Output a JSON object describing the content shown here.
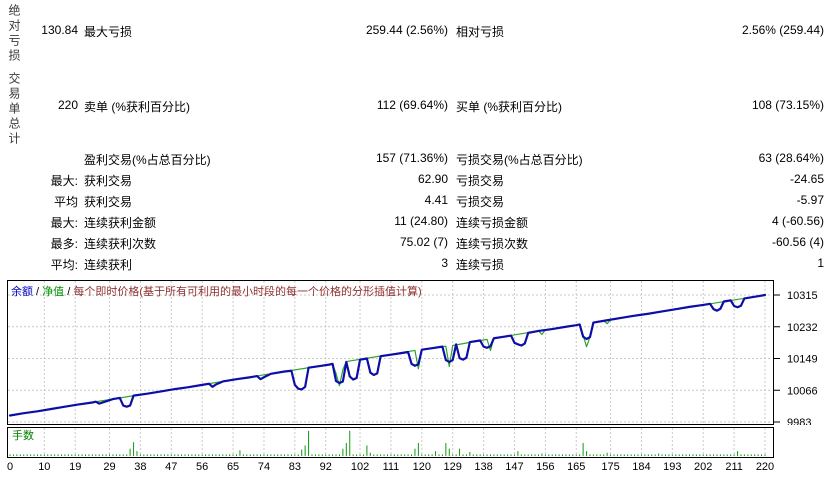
{
  "stats": {
    "captions": {
      "c1": "绝对亏损",
      "c2": "交易单总计"
    },
    "rows": [
      {
        "v1": "130.84",
        "l1": "最大亏损",
        "v2": "259.44 (2.56%)",
        "l2": "相对亏损",
        "v3": "2.56% (259.44)"
      },
      {
        "v1": "220",
        "l1": "卖单 (%获利百分比)",
        "v2": "112 (69.64%)",
        "l2": "买单 (%获利百分比)",
        "v3": "108 (73.15%)"
      },
      {
        "v1": "",
        "l1": "盈利交易(%占总百分比)",
        "v2": "157 (71.36%)",
        "l2": "亏损交易(%占总百分比)",
        "v3": "63 (28.64%)"
      },
      {
        "v1": "最大:",
        "l1": "获利交易",
        "v2": "62.90",
        "l2": "亏损交易",
        "v3": "-24.65"
      },
      {
        "v1": "平均",
        "l1": "获利交易",
        "v2": "4.41",
        "l2": "亏损交易",
        "v3": "-5.97"
      },
      {
        "v1": "最大:",
        "l1": "连续获利金额",
        "v2": "11 (24.80)",
        "l2": "连续亏损金额",
        "v3": "4 (-60.56)"
      },
      {
        "v1": "最多:",
        "l1": "连续获利次数",
        "v2": "75.02 (7)",
        "l2": "连续亏损次数",
        "v3": "-60.56 (4)"
      },
      {
        "v1": "平均:",
        "l1": "连续获利",
        "v2": "3",
        "l2": "连续亏损",
        "v3": "1"
      }
    ]
  },
  "legend": {
    "balance": "余额",
    "equity": "净值",
    "sep": " / ",
    "price": "每个即时价格(基于所有可利用的最小时段的每一个价格的分形插值计算)"
  },
  "lots_label": "手数",
  "colors": {
    "balance": "#0d0da8",
    "equity": "#2fa12f",
    "lots": "#0f9a0f",
    "price_caption": "#903030",
    "grid": "#c9c9c9",
    "border": "#000000",
    "legend_balance": "#0000c0",
    "legend_equity": "#009000"
  },
  "chart_data": [
    {
      "type": "line",
      "title": "余额 / 净值 / 每个即时价格(基于所有可利用的最小时段的每一个价格的分形插值计算)",
      "legend_position": "top-left-inside",
      "grid": true,
      "y_axis_side": "right",
      "xlim": [
        0,
        220
      ],
      "ylim": [
        9983,
        10319
      ],
      "yticks": [
        10315,
        10232,
        10149,
        10066,
        9983
      ],
      "xticks": [
        0,
        10,
        19,
        29,
        38,
        47,
        56,
        65,
        74,
        83,
        92,
        102,
        111,
        120,
        129,
        138,
        147,
        156,
        165,
        175,
        184,
        193,
        202,
        211,
        220
      ],
      "series": [
        {
          "name": "净值",
          "points": [
            [
              0,
              10000
            ],
            [
              94,
              10135
            ],
            [
              95,
              10110
            ],
            [
              96,
              10078
            ],
            [
              97,
              10120
            ],
            [
              98,
              10141
            ],
            [
              118,
              10170
            ],
            [
              119,
              10122
            ],
            [
              120,
              10172
            ],
            [
              127,
              10181
            ],
            [
              128,
              10128
            ],
            [
              129,
              10183
            ],
            [
              139,
              10199
            ],
            [
              140,
              10170
            ],
            [
              141,
              10202
            ],
            [
              154,
              10221
            ],
            [
              155,
              10212
            ],
            [
              156,
              10224
            ],
            [
              166,
              10238
            ],
            [
              167,
              10210
            ],
            [
              168,
              10180
            ],
            [
              169,
              10205
            ],
            [
              170,
              10243
            ],
            [
              173,
              10248
            ],
            [
              174,
              10240
            ],
            [
              175,
              10250
            ],
            [
              220,
              10315
            ]
          ]
        },
        {
          "name": "余额",
          "points": [
            [
              0,
              10000
            ],
            [
              4,
              10006
            ],
            [
              8,
              10011
            ],
            [
              12,
              10017
            ],
            [
              16,
              10023
            ],
            [
              20,
              10029
            ],
            [
              24,
              10034
            ],
            [
              25,
              10036
            ],
            [
              26,
              10031
            ],
            [
              27,
              10034
            ],
            [
              30,
              10043
            ],
            [
              32,
              10046
            ],
            [
              33,
              10026
            ],
            [
              34,
              10023
            ],
            [
              35,
              10026
            ],
            [
              36,
              10052
            ],
            [
              40,
              10057
            ],
            [
              44,
              10063
            ],
            [
              48,
              10069
            ],
            [
              52,
              10074
            ],
            [
              56,
              10080
            ],
            [
              58,
              10083
            ],
            [
              59,
              10075
            ],
            [
              60,
              10081
            ],
            [
              62,
              10089
            ],
            [
              66,
              10095
            ],
            [
              70,
              10100
            ],
            [
              72,
              10103
            ],
            [
              73,
              10095
            ],
            [
              74,
              10100
            ],
            [
              76,
              10109
            ],
            [
              80,
              10115
            ],
            [
              82,
              10117
            ],
            [
              83,
              10080
            ],
            [
              84,
              10070
            ],
            [
              85,
              10068
            ],
            [
              86,
              10075
            ],
            [
              87,
              10125
            ],
            [
              90,
              10129
            ],
            [
              93,
              10133
            ],
            [
              94,
              10135
            ],
            [
              95,
              10090
            ],
            [
              96,
              10085
            ],
            [
              97,
              10089
            ],
            [
              98,
              10140
            ],
            [
              99,
              10102
            ],
            [
              100,
              10094
            ],
            [
              101,
              10098
            ],
            [
              102,
              10146
            ],
            [
              104,
              10149
            ],
            [
              105,
              10112
            ],
            [
              106,
              10106
            ],
            [
              107,
              10110
            ],
            [
              108,
              10155
            ],
            [
              111,
              10159
            ],
            [
              114,
              10163
            ],
            [
              116,
              10166
            ],
            [
              117,
              10135
            ],
            [
              118,
              10130
            ],
            [
              119,
              10134
            ],
            [
              120,
              10172
            ],
            [
              123,
              10176
            ],
            [
              126,
              10180
            ],
            [
              127,
              10145
            ],
            [
              128,
              10140
            ],
            [
              129,
              10145
            ],
            [
              130,
              10186
            ],
            [
              131,
              10150
            ],
            [
              132,
              10146
            ],
            [
              133,
              10151
            ],
            [
              134,
              10192
            ],
            [
              137,
              10196
            ],
            [
              138,
              10180
            ],
            [
              139,
              10177
            ],
            [
              140,
              10181
            ],
            [
              141,
              10202
            ],
            [
              144,
              10206
            ],
            [
              146,
              10209
            ],
            [
              147,
              10190
            ],
            [
              148,
              10186
            ],
            [
              149,
              10183
            ],
            [
              150,
              10188
            ],
            [
              151,
              10216
            ],
            [
              154,
              10221
            ],
            [
              158,
              10226
            ],
            [
              162,
              10232
            ],
            [
              165,
              10236
            ],
            [
              166,
              10238
            ],
            [
              167,
              10206
            ],
            [
              168,
              10200
            ],
            [
              169,
              10205
            ],
            [
              170,
              10243
            ],
            [
              174,
              10249
            ],
            [
              178,
              10255
            ],
            [
              182,
              10261
            ],
            [
              186,
              10266
            ],
            [
              190,
              10272
            ],
            [
              194,
              10278
            ],
            [
              198,
              10284
            ],
            [
              202,
              10289
            ],
            [
              204,
              10292
            ],
            [
              205,
              10278
            ],
            [
              206,
              10274
            ],
            [
              207,
              10279
            ],
            [
              208,
              10298
            ],
            [
              210,
              10301
            ],
            [
              211,
              10286
            ],
            [
              212,
              10283
            ],
            [
              213,
              10287
            ],
            [
              214,
              10306
            ],
            [
              216,
              10309
            ],
            [
              218,
              10312
            ],
            [
              220,
              10315
            ]
          ]
        }
      ]
    },
    {
      "type": "bar",
      "title": "手数",
      "xlim": [
        0,
        220
      ],
      "default_value": 0.1,
      "max_value": 1.6,
      "values_note": "lot size per trade; all trades 0.1 except spikes",
      "spikes": [
        [
          35,
          0.45
        ],
        [
          36,
          0.85
        ],
        [
          37,
          0.3
        ],
        [
          67,
          0.35
        ],
        [
          85,
          0.4
        ],
        [
          86,
          0.65
        ],
        [
          87,
          1.55
        ],
        [
          97,
          0.45
        ],
        [
          98,
          0.8
        ],
        [
          99,
          1.55
        ],
        [
          104,
          0.65
        ],
        [
          105,
          0.2
        ],
        [
          118,
          0.45
        ],
        [
          119,
          0.8
        ],
        [
          124,
          0.3
        ],
        [
          127,
          0.8
        ],
        [
          128,
          0.45
        ],
        [
          131,
          0.45
        ],
        [
          134,
          0.25
        ],
        [
          148,
          0.3
        ],
        [
          155,
          0.15
        ],
        [
          167,
          0.8
        ],
        [
          168,
          0.3
        ],
        [
          174,
          0.2
        ],
        [
          189,
          0.15
        ],
        [
          212,
          0.3
        ]
      ]
    }
  ]
}
